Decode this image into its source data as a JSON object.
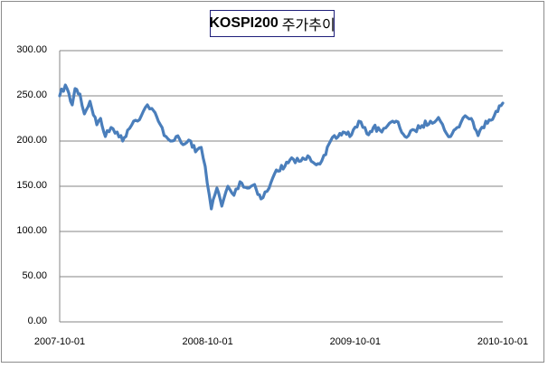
{
  "chart_data": {
    "type": "line",
    "title": "KOSPI200 주가추이",
    "title_parts": [
      "KOSPI200",
      "주가추이"
    ],
    "xlabel": "",
    "ylabel": "",
    "ylim": [
      0,
      300
    ],
    "xlim": [
      "2007-10-01",
      "2010-10-01"
    ],
    "grid": true,
    "legend": "none",
    "y_ticks": [
      "300.00",
      "250.00",
      "200.00",
      "150.00",
      "100.00",
      "50.00",
      "0.00"
    ],
    "x_ticks": [
      "2007-10-01",
      "2008-10-01",
      "2009-10-01",
      "2010-10-01"
    ],
    "series": [
      {
        "name": "KOSPI200",
        "color": "#4a7ebb",
        "x": [
          "2007-10-01",
          "2007-10-15",
          "2007-11-01",
          "2007-11-08",
          "2007-11-20",
          "2007-12-01",
          "2007-12-15",
          "2008-01-01",
          "2008-01-10",
          "2008-01-22",
          "2008-02-05",
          "2008-02-20",
          "2008-03-05",
          "2008-03-17",
          "2008-04-01",
          "2008-04-20",
          "2008-05-05",
          "2008-05-16",
          "2008-06-01",
          "2008-06-20",
          "2008-07-01",
          "2008-07-15",
          "2008-08-01",
          "2008-08-20",
          "2008-09-01",
          "2008-09-15",
          "2008-09-25",
          "2008-10-10",
          "2008-10-24",
          "2008-11-05",
          "2008-11-20",
          "2008-12-05",
          "2008-12-20",
          "2009-01-07",
          "2009-01-25",
          "2009-02-10",
          "2009-03-02",
          "2009-03-20",
          "2009-04-10",
          "2009-05-01",
          "2009-05-20",
          "2009-06-10",
          "2009-07-01",
          "2009-07-20",
          "2009-08-01",
          "2009-08-20",
          "2009-09-01",
          "2009-09-22",
          "2009-10-10",
          "2009-10-30",
          "2009-11-15",
          "2009-12-01",
          "2009-12-20",
          "2010-01-10",
          "2010-01-20",
          "2010-02-05",
          "2010-02-25",
          "2010-03-15",
          "2010-04-05",
          "2010-04-25",
          "2010-05-10",
          "2010-05-25",
          "2010-06-10",
          "2010-06-30",
          "2010-07-15",
          "2010-08-01",
          "2010-08-20",
          "2010-09-10",
          "2010-10-01"
        ],
        "values": [
          250,
          262,
          240,
          258,
          252,
          230,
          244,
          218,
          225,
          205,
          215,
          210,
          200,
          212,
          222,
          228,
          240,
          236,
          222,
          205,
          200,
          205,
          196,
          200,
          188,
          193,
          172,
          125,
          148,
          128,
          150,
          140,
          155,
          148,
          152,
          136,
          148,
          168,
          172,
          180,
          178,
          182,
          175,
          185,
          200,
          205,
          210,
          207,
          222,
          208,
          215,
          212,
          217,
          222,
          214,
          204,
          212,
          217,
          222,
          226,
          212,
          205,
          215,
          228,
          225,
          206,
          222,
          228,
          242
        ]
      }
    ]
  }
}
